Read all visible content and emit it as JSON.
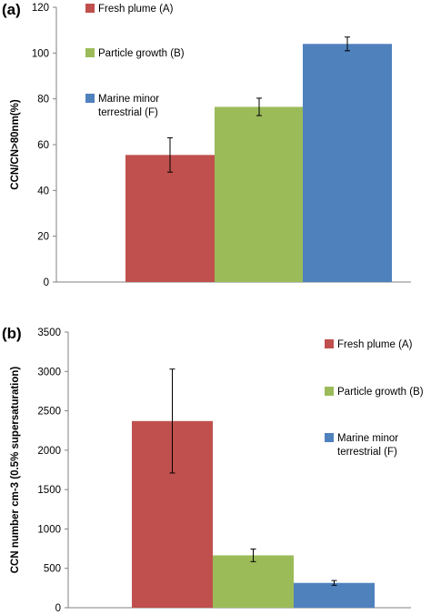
{
  "chart_data": [
    {
      "type": "bar",
      "panel_label": "(a)",
      "ylabel": "CCN/CN>80nm(%)",
      "ylim": [
        0,
        120
      ],
      "yticks": [
        0,
        20,
        40,
        60,
        80,
        100,
        120
      ],
      "grid": false,
      "legend_position": "top-left inside",
      "series": [
        {
          "name": "Fresh plume (A)",
          "value": 55.5,
          "error": 7.5,
          "color": "#c0504d"
        },
        {
          "name": "Particle growth (B)",
          "value": 76.5,
          "error": 3.8,
          "color": "#9bbb59"
        },
        {
          "name": "Marine minor terrestrial (F)",
          "legend_lines": [
            "Marine minor",
            "terrestrial (F)"
          ],
          "value": 104,
          "error": 3.0,
          "color": "#4f81bd"
        }
      ]
    },
    {
      "type": "bar",
      "panel_label": "(b)",
      "ylabel": "CCN number cm-3 (0.5% supersaturation)",
      "ylim": [
        0,
        3500
      ],
      "yticks": [
        0,
        500,
        1000,
        1500,
        2000,
        2500,
        3000,
        3500
      ],
      "grid": false,
      "legend_position": "right",
      "series": [
        {
          "name": "Fresh plume (A)",
          "value": 2370,
          "error": 660,
          "color": "#c0504d"
        },
        {
          "name": "Particle growth (B)",
          "value": 665,
          "error": 80,
          "color": "#9bbb59"
        },
        {
          "name": "Marine minor terrestrial (F)",
          "legend_lines": [
            "Marine minor",
            "terrestrial (F)"
          ],
          "value": 315,
          "error": 30,
          "color": "#4f81bd"
        }
      ]
    }
  ]
}
